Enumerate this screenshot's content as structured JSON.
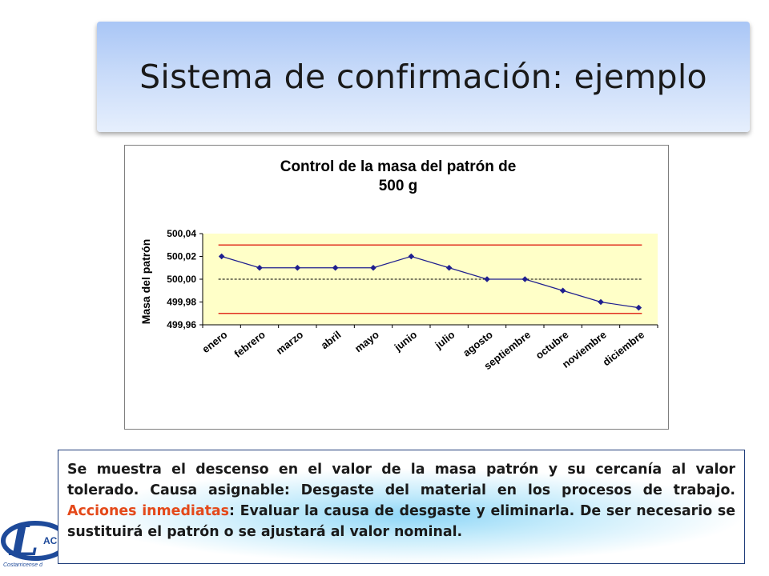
{
  "slide": {
    "title": "Sistema de confirmación: ejemplo"
  },
  "chart_data": {
    "type": "line",
    "title": "Control de la masa del patrón de 500 g",
    "title_lines": [
      "Control de la masa del patrón de",
      "500 g"
    ],
    "xlabel": "",
    "ylabel": "Masa del patrón",
    "categories": [
      "enero",
      "febrero",
      "marzo",
      "abril",
      "mayo",
      "junio",
      "julio",
      "agosto",
      "septiembre",
      "octubre",
      "noviembre",
      "diciembre"
    ],
    "series": [
      {
        "values": [
          500.02,
          500.01,
          500.01,
          500.01,
          500.01,
          500.02,
          500.01,
          500.0,
          500.0,
          499.99,
          499.98,
          499.975
        ],
        "color": "#1f1f8f"
      }
    ],
    "limits": {
      "upper": 500.03,
      "lower": 499.97,
      "color": "#e03020"
    },
    "nominal": {
      "value": 500.0,
      "color": "#000000",
      "style": "dashed"
    },
    "ylim": [
      499.96,
      500.04
    ],
    "yticks": [
      "499,96",
      "499,98",
      "500,00",
      "500,02",
      "500,04"
    ],
    "plot_background": "#ffffc8",
    "grid": false,
    "legend": "none"
  },
  "description": {
    "part1": "Se muestra el descenso en el valor de la masa patrón y su cercanía al valor tolerado.    Causa asignable: Desgaste del material en los procesos de trabajo.  ",
    "accent_text": "Acciones inmediatas",
    "part2": ":  Evaluar la causa de desgaste y eliminarla. De ser necesario se sustituirá el patrón o se ajustará al valor nominal.",
    "accent_color": "#e4491a"
  },
  "logo": {
    "letter": "L",
    "text_fragment": "AC",
    "subtitle_fragment": "Costarricense d"
  }
}
